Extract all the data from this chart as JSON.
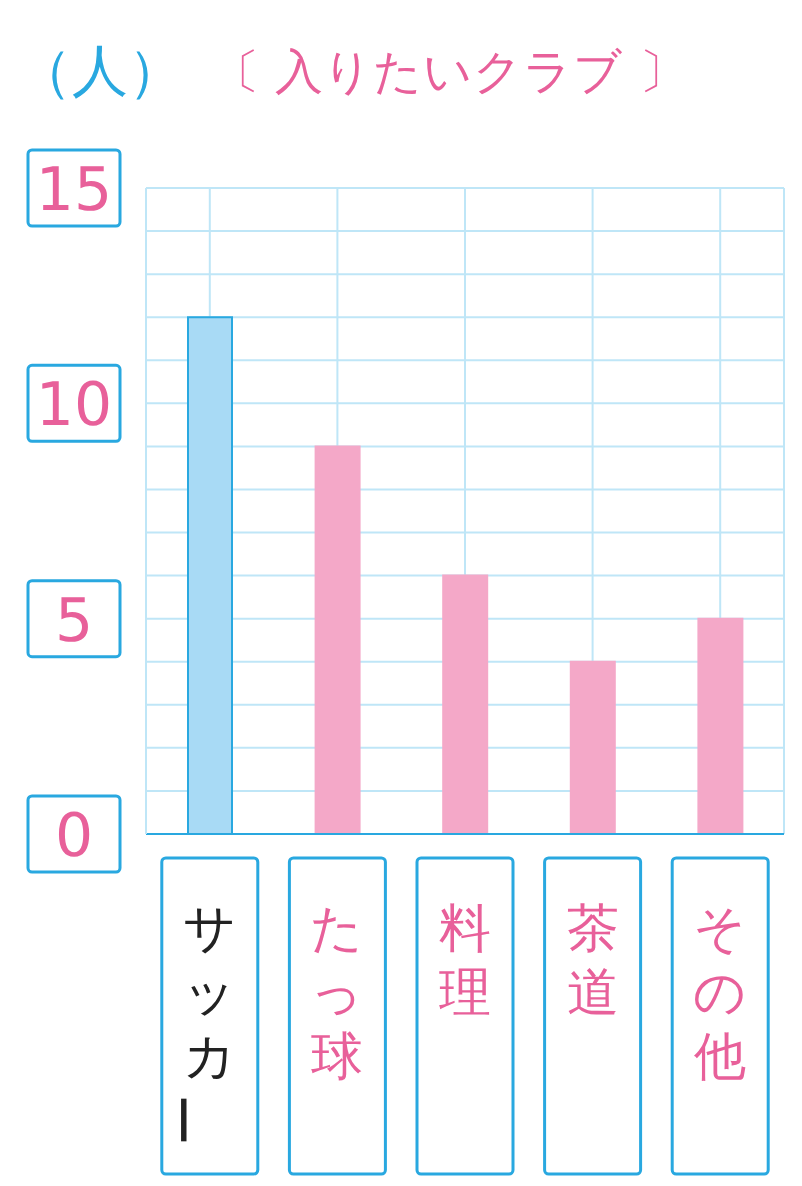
{
  "chart_data": {
    "type": "bar",
    "title": "〔 入りたいクラブ 〕",
    "ylabel": "（人）",
    "categories": [
      "サッカー",
      "たっ球",
      "料理",
      "茶道",
      "その他"
    ],
    "values": [
      12,
      9,
      6,
      4,
      5
    ],
    "colors": [
      "#a8daf5",
      "#f4a8c8",
      "#f4a8c8",
      "#f4a8c8",
      "#f4a8c8"
    ],
    "ylim": [
      0,
      15
    ],
    "yticks": [
      0,
      {
        "value": 1,
        "label": null
      },
      {
        "value": 2,
        "label": null
      },
      {
        "value": 3,
        "label": null
      },
      {
        "value": 4,
        "label": null
      },
      5,
      {
        "value": 6,
        "label": null
      },
      {
        "value": 7,
        "label": null
      },
      {
        "value": 8,
        "label": null
      },
      {
        "value": 9,
        "label": null
      },
      10,
      {
        "value": 11,
        "label": null
      },
      {
        "value": 12,
        "label": null
      },
      {
        "value": 13,
        "label": null
      },
      {
        "value": 14,
        "label": null
      },
      15
    ],
    "grid": true
  }
}
